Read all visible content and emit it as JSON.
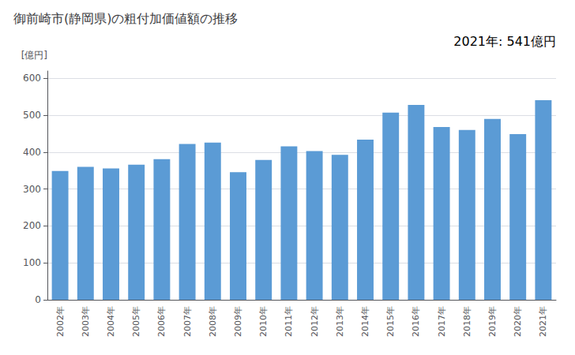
{
  "chart_data": {
    "type": "bar",
    "title": "御前崎市(静岡県)の粗付加価値額の推移",
    "ylabel": "[億円]",
    "annotation": "2021年: 541億円",
    "categories": [
      "2002年",
      "2003年",
      "2004年",
      "2005年",
      "2006年",
      "2007年",
      "2008年",
      "2009年",
      "2010年",
      "2011年",
      "2012年",
      "2013年",
      "2014年",
      "2015年",
      "2016年",
      "2017年",
      "2018年",
      "2019年",
      "2020年",
      "2021年"
    ],
    "values": [
      349,
      360,
      356,
      366,
      381,
      422,
      426,
      346,
      379,
      416,
      403,
      393,
      434,
      507,
      528,
      468,
      460,
      490,
      449,
      541
    ],
    "color": "#5b9bd5",
    "ylim": [
      0,
      620
    ],
    "yticks": [
      0,
      100,
      200,
      300,
      400,
      500,
      600
    ],
    "grid": true
  }
}
